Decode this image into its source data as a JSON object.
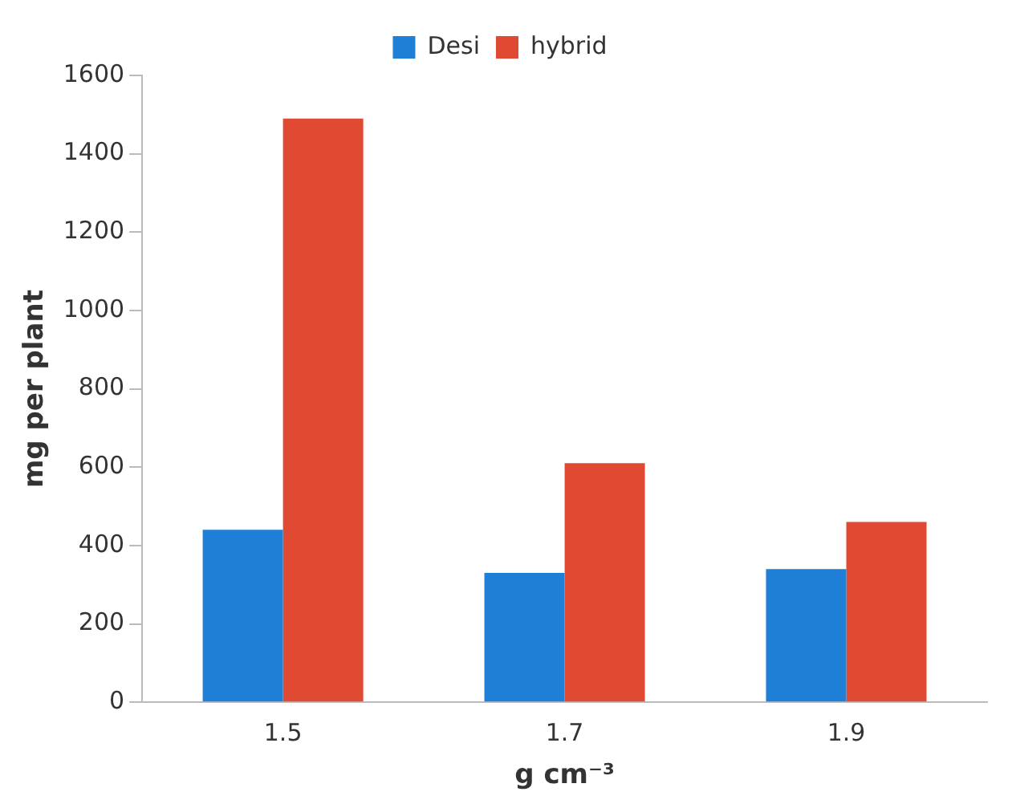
{
  "chart_data": {
    "type": "bar",
    "xlabel": "g cm⁻³",
    "ylabel": "mg per plant",
    "categories": [
      "1.5",
      "1.7",
      "1.9"
    ],
    "series": [
      {
        "name": "Desi",
        "color": "#1f7fd6",
        "values": [
          440,
          330,
          340
        ]
      },
      {
        "name": "hybrid",
        "color": "#e04a32",
        "values": [
          1490,
          610,
          460
        ]
      }
    ],
    "ylim": [
      0,
      1600
    ],
    "yticks": [
      0,
      200,
      400,
      600,
      800,
      1000,
      1200,
      1400,
      1600
    ],
    "grid": false,
    "legend": "top"
  }
}
